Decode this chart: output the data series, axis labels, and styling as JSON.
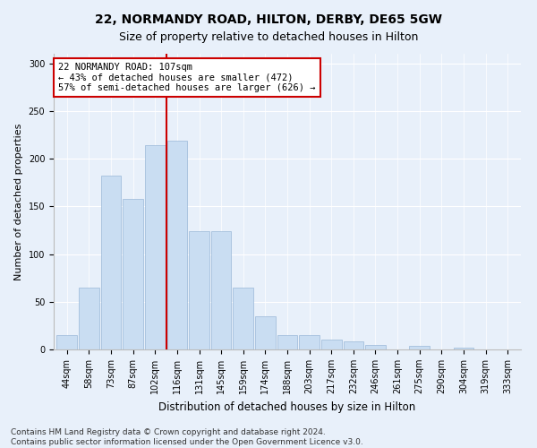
{
  "title1": "22, NORMANDY ROAD, HILTON, DERBY, DE65 5GW",
  "title2": "Size of property relative to detached houses in Hilton",
  "xlabel": "Distribution of detached houses by size in Hilton",
  "ylabel": "Number of detached properties",
  "categories": [
    "44sqm",
    "58sqm",
    "73sqm",
    "87sqm",
    "102sqm",
    "116sqm",
    "131sqm",
    "145sqm",
    "159sqm",
    "174sqm",
    "188sqm",
    "203sqm",
    "217sqm",
    "232sqm",
    "246sqm",
    "261sqm",
    "275sqm",
    "290sqm",
    "304sqm",
    "319sqm",
    "333sqm"
  ],
  "values": [
    15,
    65,
    182,
    158,
    214,
    219,
    124,
    124,
    65,
    35,
    15,
    15,
    10,
    8,
    5,
    0,
    4,
    0,
    2,
    0,
    0
  ],
  "bar_color": "#c9ddf2",
  "bar_edge_color": "#9ab8d8",
  "vline_x": 4.5,
  "vline_color": "#cc0000",
  "annotation_text": "22 NORMANDY ROAD: 107sqm\n← 43% of detached houses are smaller (472)\n57% of semi-detached houses are larger (626) →",
  "annotation_box_color": "#ffffff",
  "annotation_box_edge": "#cc0000",
  "ylim": [
    0,
    310
  ],
  "yticks": [
    0,
    50,
    100,
    150,
    200,
    250,
    300
  ],
  "footer_text": "Contains HM Land Registry data © Crown copyright and database right 2024.\nContains public sector information licensed under the Open Government Licence v3.0.",
  "background_color": "#e8f0fa",
  "plot_bg_color": "#e8f0fa",
  "title1_fontsize": 10,
  "title2_fontsize": 9,
  "xlabel_fontsize": 8.5,
  "ylabel_fontsize": 8,
  "tick_fontsize": 7,
  "footer_fontsize": 6.5,
  "annot_fontsize": 7.5
}
